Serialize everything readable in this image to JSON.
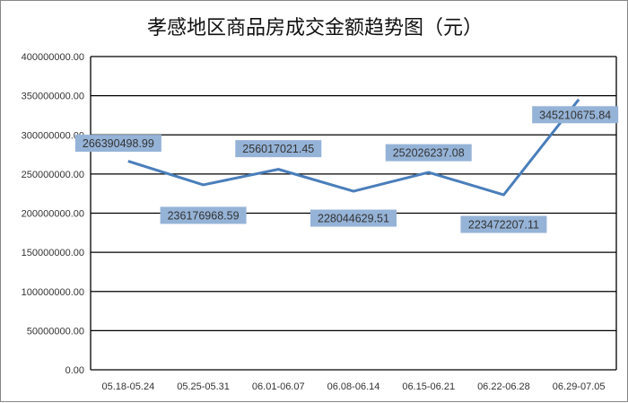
{
  "chart_data": {
    "type": "line",
    "title": "孝感地区商品房成交金额趋势图（元）",
    "xlabel": "",
    "ylabel": "",
    "categories": [
      "05.18-05.24",
      "05.25-05.31",
      "06.01-06.07",
      "06.08-06.14",
      "06.15-06.21",
      "06.22-06.28",
      "06.29-07.05"
    ],
    "values": [
      266390498.99,
      236176968.59,
      256017021.45,
      228044629.51,
      252026237.08,
      223472207.11,
      345210675.84
    ],
    "data_labels": [
      "266390498.99",
      "236176968.59",
      "256017021.45",
      "228044629.51",
      "252026237.08",
      "223472207.11",
      "345210675.84"
    ],
    "ylim": [
      0,
      400000000
    ],
    "yticks": [
      "0.00",
      "50000000.00",
      "100000000.00",
      "150000000.00",
      "200000000.00",
      "250000000.00",
      "300000000.00",
      "350000000.00",
      "400000000.00"
    ],
    "grid": true,
    "legend": "none",
    "colors": {
      "line": "#4a7ebb",
      "label_bg": "#95b3d7",
      "grid": "#000000"
    }
  }
}
